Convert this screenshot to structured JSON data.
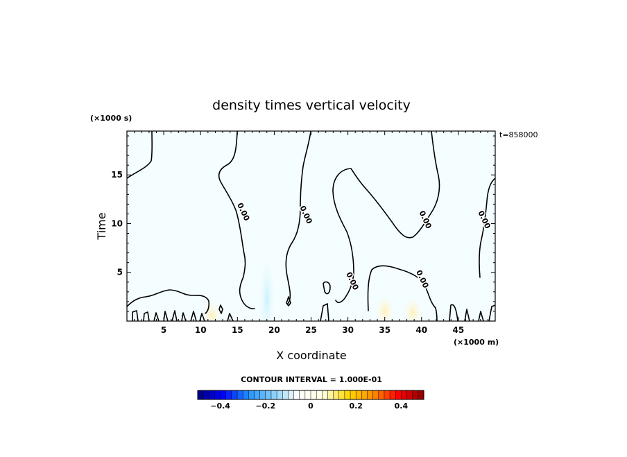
{
  "chart_data": {
    "type": "heatmap",
    "title": "density times vertical velocity",
    "xlabel": "X coordinate",
    "ylabel": "Time",
    "x_unit": "(×1000 m)",
    "y_unit": "(×1000 s)",
    "time_label": "t=858000",
    "xlim": [
      0,
      50
    ],
    "ylim": [
      0,
      19.5
    ],
    "x_ticks": [
      5,
      10,
      15,
      20,
      25,
      30,
      35,
      40,
      45
    ],
    "y_ticks": [
      5,
      10,
      15
    ],
    "contour_interval_label": "CONTOUR INTERVAL = 1.000E-01",
    "contour_label": "0.00",
    "contour_label_positions": [
      {
        "x": 15.5,
        "y": 11.1
      },
      {
        "x": 24.0,
        "y": 10.8
      },
      {
        "x": 30.3,
        "y": 4.0
      },
      {
        "x": 39.8,
        "y": 4.2
      },
      {
        "x": 40.2,
        "y": 10.3
      },
      {
        "x": 48.2,
        "y": 10.3
      }
    ],
    "colorbar": {
      "min": -0.5,
      "max": 0.5,
      "n_bins": 40,
      "tick_values": [
        -0.4,
        -0.2,
        0,
        0.2,
        0.4
      ],
      "tick_labels": [
        "-0.4",
        "-0.2",
        "0",
        "0.2",
        "0.4"
      ],
      "colors": [
        "#00007f",
        "#0000ff",
        "#1e90ff",
        "#87cefa",
        "#ffffff",
        "#ffffe0",
        "#ffd700",
        "#ff8c00",
        "#ff0000",
        "#8b0000"
      ]
    },
    "field_blobs": [
      {
        "x": 19.0,
        "y": 2.3,
        "value": -0.05
      },
      {
        "x": 35.0,
        "y": 1.0,
        "value": 0.04
      },
      {
        "x": 38.8,
        "y": 0.9,
        "value": 0.04
      },
      {
        "x": 11.5,
        "y": 0.6,
        "value": 0.03
      }
    ]
  }
}
